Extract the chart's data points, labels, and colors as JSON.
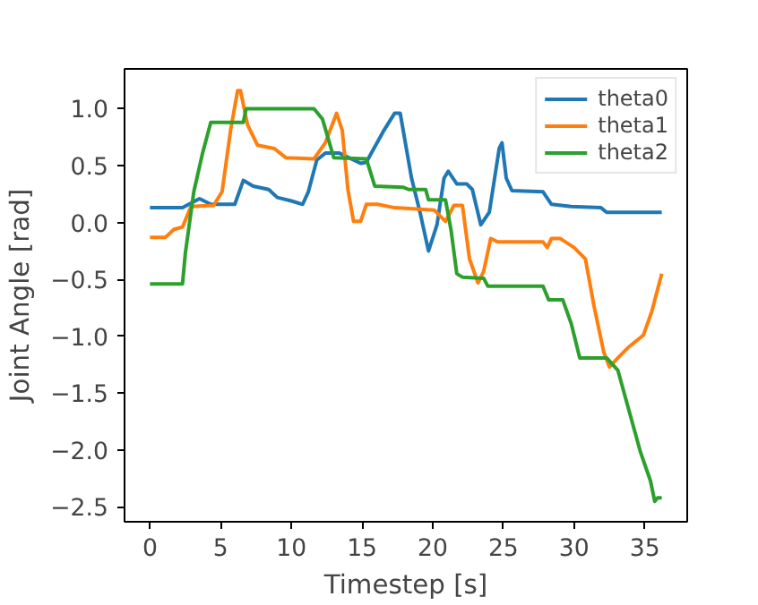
{
  "chart_data": {
    "type": "line",
    "xlabel": "Timestep [s]",
    "ylabel": "Joint Angle [rad]",
    "xlim": [
      -1.8,
      38
    ],
    "ylim": [
      -2.63,
      1.35
    ],
    "xticks": [
      0,
      5,
      10,
      15,
      20,
      25,
      30,
      35
    ],
    "yticks": [
      {
        "value": -2.5,
        "label": "−2.5"
      },
      {
        "value": -2.0,
        "label": "−2.0"
      },
      {
        "value": -1.5,
        "label": "−1.5"
      },
      {
        "value": -1.0,
        "label": "−1.0"
      },
      {
        "value": -0.5,
        "label": "−0.5"
      },
      {
        "value": 0.0,
        "label": "0.0"
      },
      {
        "value": 0.5,
        "label": "0.5"
      },
      {
        "value": 1.0,
        "label": "1.0"
      }
    ],
    "grid": false,
    "legend": "top right",
    "marker": "none",
    "line_style": "solid",
    "series": [
      {
        "name": "theta0",
        "color": "#1f77b4",
        "x": [
          0,
          2.3,
          3.5,
          4.3,
          6,
          6.6,
          7.3,
          8.4,
          9,
          10,
          10.8,
          11.2,
          11.8,
          12.4,
          13.4,
          14.9,
          15.3,
          16.5,
          17.3,
          17.7,
          18.5,
          19.1,
          19.7,
          20.3,
          20.8,
          21.1,
          21.7,
          22.4,
          22.8,
          23.4,
          24,
          24.7,
          24.9,
          25.2,
          25.6,
          27.8,
          28.4,
          29.8,
          31.9,
          32.3,
          36.2
        ],
        "values": [
          0.13,
          0.13,
          0.21,
          0.16,
          0.16,
          0.37,
          0.32,
          0.29,
          0.22,
          0.19,
          0.16,
          0.27,
          0.55,
          0.61,
          0.61,
          0.52,
          0.53,
          0.8,
          0.96,
          0.96,
          0.39,
          0.09,
          -0.25,
          -0.02,
          0.39,
          0.45,
          0.34,
          0.34,
          0.29,
          -0.02,
          0.09,
          0.65,
          0.7,
          0.39,
          0.28,
          0.27,
          0.16,
          0.14,
          0.13,
          0.09,
          0.09
        ]
      },
      {
        "name": "theta1",
        "color": "#ff7f0e",
        "x": [
          0,
          1.1,
          1.7,
          2.3,
          2.9,
          4.5,
          5.1,
          5.7,
          6.2,
          6.4,
          6.9,
          7.6,
          8.8,
          9.6,
          11.6,
          12.4,
          13.2,
          13.6,
          14.0,
          14.4,
          14.9,
          15.3,
          16.1,
          17.3,
          20.1,
          20.9,
          21.5,
          22.1,
          22.6,
          23.2,
          23.6,
          24.1,
          24.6,
          27.8,
          28.1,
          28.4,
          29,
          30,
          30.8,
          31.4,
          32.1,
          32.5,
          33.1,
          33.9,
          34.9,
          35.5,
          36.2
        ],
        "values": [
          -0.13,
          -0.13,
          -0.06,
          -0.04,
          0.14,
          0.15,
          0.27,
          0.81,
          1.16,
          1.16,
          0.86,
          0.68,
          0.65,
          0.57,
          0.56,
          0.7,
          0.96,
          0.81,
          0.29,
          0.01,
          0.01,
          0.16,
          0.16,
          0.13,
          0.11,
          0.01,
          0.15,
          0.15,
          -0.32,
          -0.53,
          -0.43,
          -0.14,
          -0.17,
          -0.17,
          -0.22,
          -0.14,
          -0.14,
          -0.22,
          -0.32,
          -0.73,
          -1.14,
          -1.27,
          -1.19,
          -1.09,
          -0.99,
          -0.78,
          -0.45
        ]
      },
      {
        "name": "theta2",
        "color": "#2ca02c",
        "x": [
          0,
          2.3,
          2.5,
          3.1,
          3.7,
          4.3,
          6.6,
          6.8,
          11.6,
          12.2,
          13.0,
          15.3,
          15.9,
          17.9,
          18.3,
          19.5,
          19.7,
          20.9,
          21.3,
          21.7,
          22.1,
          23.6,
          23.9,
          27.8,
          28.2,
          29.2,
          29.8,
          30.4,
          32.3,
          33.1,
          33.9,
          34.7,
          35.4,
          35.7,
          35.9,
          36.2
        ],
        "values": [
          -0.54,
          -0.54,
          -0.27,
          0.27,
          0.6,
          0.88,
          0.88,
          1.0,
          1.0,
          0.91,
          0.57,
          0.56,
          0.32,
          0.31,
          0.29,
          0.29,
          0.2,
          0.2,
          -0.07,
          -0.45,
          -0.48,
          -0.49,
          -0.56,
          -0.56,
          -0.68,
          -0.68,
          -0.89,
          -1.19,
          -1.19,
          -1.3,
          -1.66,
          -2.02,
          -2.27,
          -2.45,
          -2.42,
          -2.42
        ]
      }
    ]
  }
}
